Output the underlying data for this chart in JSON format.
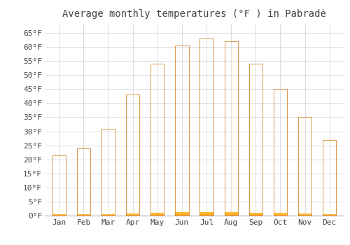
{
  "title": "Average monthly temperatures (°F ) in Pabradė",
  "months": [
    "Jan",
    "Feb",
    "Mar",
    "Apr",
    "May",
    "Jun",
    "Jul",
    "Aug",
    "Sep",
    "Oct",
    "Nov",
    "Dec"
  ],
  "values": [
    21.5,
    24.0,
    31.0,
    43.0,
    54.0,
    60.5,
    63.0,
    62.0,
    54.0,
    45.0,
    35.0,
    27.0
  ],
  "bar_color_top": "#FFB830",
  "bar_color_bottom": "#FF8C00",
  "bar_edge_color": "#CC7000",
  "background_color": "#FFFFFF",
  "grid_color": "#DDDDDD",
  "text_color": "#444444",
  "ylim": [
    0,
    68
  ],
  "yticks": [
    0,
    5,
    10,
    15,
    20,
    25,
    30,
    35,
    40,
    45,
    50,
    55,
    60,
    65
  ],
  "title_fontsize": 10,
  "tick_fontsize": 8,
  "font_family": "monospace",
  "bar_width": 0.55
}
